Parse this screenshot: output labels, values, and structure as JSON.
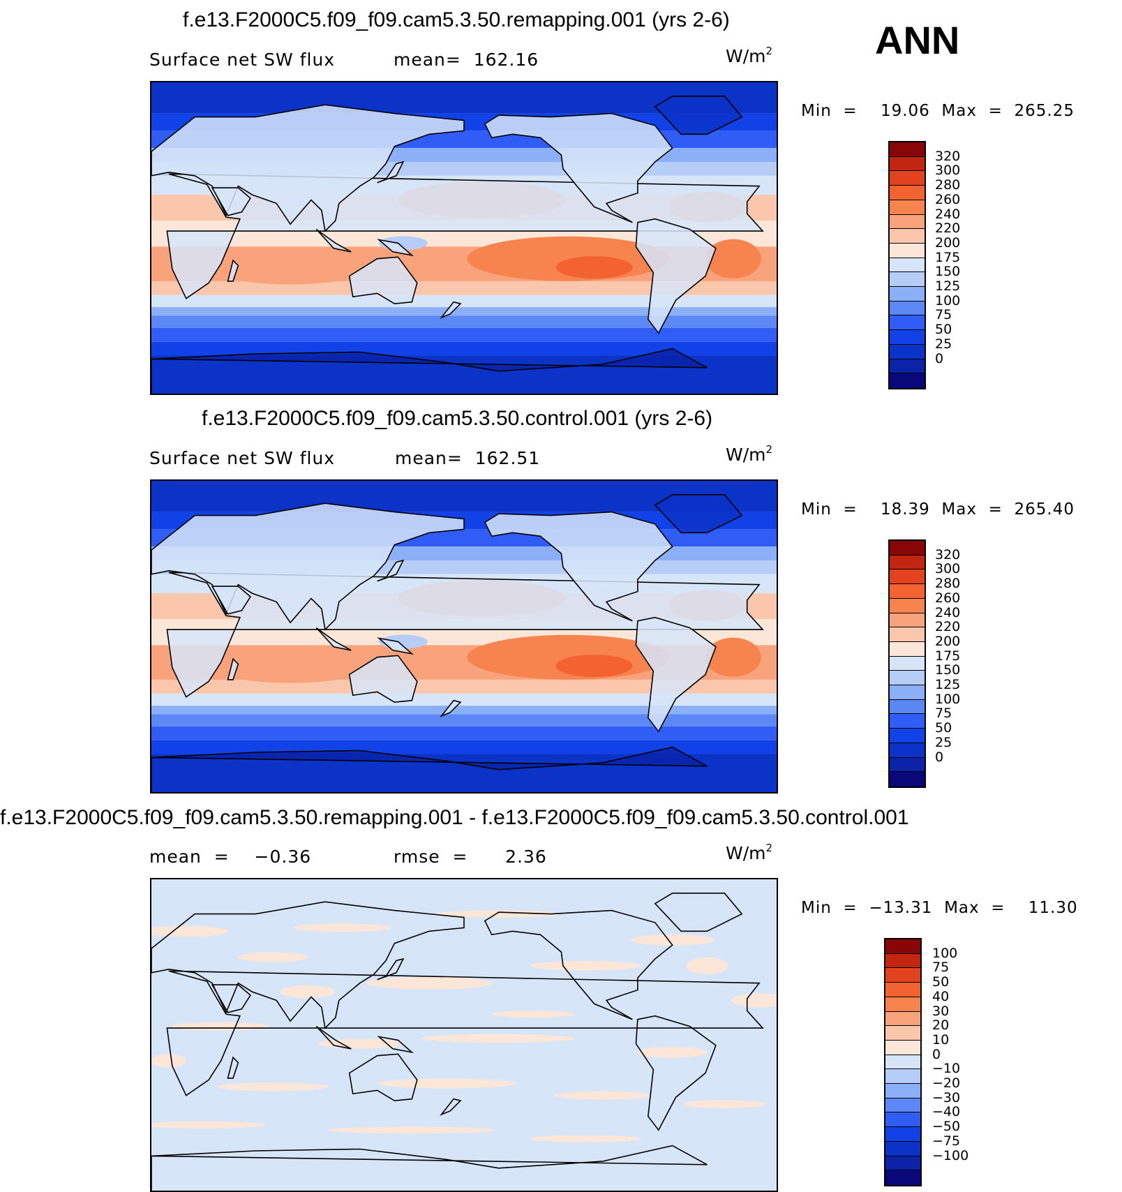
{
  "ann_label": "ANN",
  "colors": {
    "abs_scale": [
      "#08087a",
      "#0a23a8",
      "#0c33c8",
      "#1042e8",
      "#2f5df5",
      "#5b88f5",
      "#8cb0f7",
      "#b6cdf7",
      "#d7e5f9",
      "#fbe6d8",
      "#fbc7ac",
      "#f9a37c",
      "#f7834f",
      "#f26331",
      "#e2431e",
      "#c22610",
      "#880606"
    ],
    "diff_scale": [
      "#08087a",
      "#0a23a8",
      "#0c33c8",
      "#1042e8",
      "#2f5df5",
      "#5b88f5",
      "#8cb0f7",
      "#b6cdf7",
      "#d7e5f9",
      "#fbe6d8",
      "#fbc7ac",
      "#f9a37c",
      "#f7834f",
      "#f26331",
      "#e2431e",
      "#c22610",
      "#880606"
    ]
  },
  "chart_data": [
    {
      "type": "heatmap",
      "title": "f.e13.F2000C5.f09_f09.cam5.3.50.remapping.001 (yrs 2-6)",
      "field_label": "Surface net SW flux",
      "stat_text": "mean=  162.16",
      "units": "W/m",
      "units_sup": "2",
      "minmax_text": "Min  =    19.06  Max  =  265.25",
      "min": 19.06,
      "max": 265.25,
      "mean": 162.16,
      "colorbar_levels": [
        "320",
        "300",
        "280",
        "260",
        "240",
        "220",
        "200",
        "175",
        "150",
        "125",
        "100",
        "75",
        "50",
        "25",
        "0"
      ]
    },
    {
      "type": "heatmap",
      "title": "f.e13.F2000C5.f09_f09.cam5.3.50.control.001 (yrs 2-6)",
      "field_label": "Surface net SW flux",
      "stat_text": "mean=  162.51",
      "units": "W/m",
      "units_sup": "2",
      "minmax_text": "Min  =    18.39  Max  =  265.40",
      "min": 18.39,
      "max": 265.4,
      "mean": 162.51,
      "colorbar_levels": [
        "320",
        "300",
        "280",
        "260",
        "240",
        "220",
        "200",
        "175",
        "150",
        "125",
        "100",
        "75",
        "50",
        "25",
        "0"
      ]
    },
    {
      "type": "heatmap",
      "title": "f.e13.F2000C5.f09_f09.cam5.3.50.remapping.001 - f.e13.F2000C5.f09_f09.cam5.3.50.control.001",
      "field_label": "mean  =    −0.36",
      "stat_text": "rmse  =      2.36",
      "units": "W/m",
      "units_sup": "2",
      "minmax_text": "Min  =  −13.31  Max  =    11.30",
      "min": -13.31,
      "max": 11.3,
      "mean": -0.36,
      "rmse": 2.36,
      "colorbar_levels": [
        "100",
        "75",
        "50",
        "40",
        "30",
        "20",
        "10",
        "0",
        "−10",
        "−20",
        "−30",
        "−40",
        "−50",
        "−75",
        "−100"
      ]
    }
  ]
}
